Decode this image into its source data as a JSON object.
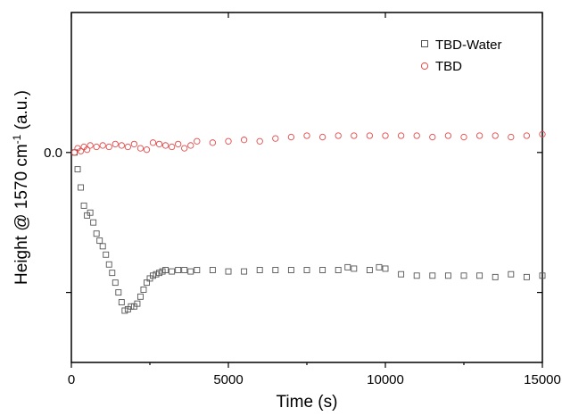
{
  "chart_data": {
    "type": "scatter",
    "title": "",
    "xlabel": "Time (s)",
    "ylabel_parts": {
      "pre": "Height @ 1570 cm",
      "sup": "-1",
      "post": " (a.u.)"
    },
    "xlim": [
      0,
      15000
    ],
    "ylim": [
      -1.5,
      1.0
    ],
    "xticks": [
      0,
      5000,
      10000,
      15000
    ],
    "xtick_labels": [
      "0",
      "5000",
      "10000",
      "15000"
    ],
    "yticks": [
      0.0
    ],
    "ytick_labels": [
      "0.0"
    ],
    "grid": false,
    "legend_position": "top-right",
    "series": [
      {
        "name": "TBD-Water",
        "marker": "square",
        "color": "#555555",
        "x": [
          100,
          200,
          300,
          400,
          500,
          600,
          700,
          800,
          900,
          1000,
          1100,
          1200,
          1300,
          1400,
          1500,
          1600,
          1700,
          1800,
          1900,
          2000,
          2100,
          2200,
          2300,
          2400,
          2500,
          2600,
          2700,
          2800,
          2900,
          3000,
          3200,
          3400,
          3600,
          3800,
          4000,
          4500,
          5000,
          5500,
          6000,
          6500,
          7000,
          7500,
          8000,
          8500,
          8800,
          9000,
          9500,
          9800,
          10000,
          10500,
          11000,
          11500,
          12000,
          12500,
          13000,
          13500,
          14000,
          14500,
          15000
        ],
        "y": [
          0.0,
          -0.12,
          -0.25,
          -0.38,
          -0.45,
          -0.43,
          -0.5,
          -0.58,
          -0.63,
          -0.67,
          -0.73,
          -0.8,
          -0.86,
          -0.93,
          -1.0,
          -1.07,
          -1.13,
          -1.12,
          -1.1,
          -1.1,
          -1.08,
          -1.03,
          -0.98,
          -0.93,
          -0.9,
          -0.88,
          -0.87,
          -0.86,
          -0.85,
          -0.84,
          -0.85,
          -0.84,
          -0.84,
          -0.85,
          -0.84,
          -0.84,
          -0.85,
          -0.85,
          -0.84,
          -0.84,
          -0.84,
          -0.84,
          -0.84,
          -0.84,
          -0.82,
          -0.83,
          -0.84,
          -0.82,
          -0.83,
          -0.87,
          -0.88,
          -0.88,
          -0.88,
          -0.88,
          -0.88,
          -0.89,
          -0.87,
          -0.89,
          -0.88
        ]
      },
      {
        "name": "TBD",
        "marker": "circle",
        "color": "#e34a4a",
        "x": [
          100,
          200,
          300,
          400,
          500,
          600,
          800,
          1000,
          1200,
          1400,
          1600,
          1800,
          2000,
          2200,
          2400,
          2600,
          2800,
          3000,
          3200,
          3400,
          3600,
          3800,
          4000,
          4500,
          5000,
          5500,
          6000,
          6500,
          7000,
          7500,
          8000,
          8500,
          9000,
          9500,
          10000,
          10500,
          11000,
          11500,
          12000,
          12500,
          13000,
          13500,
          14000,
          14500,
          15000
        ],
        "y": [
          0.0,
          0.03,
          0.01,
          0.04,
          0.02,
          0.05,
          0.04,
          0.05,
          0.04,
          0.06,
          0.05,
          0.04,
          0.06,
          0.03,
          0.02,
          0.07,
          0.06,
          0.05,
          0.04,
          0.06,
          0.03,
          0.05,
          0.08,
          0.07,
          0.08,
          0.09,
          0.08,
          0.1,
          0.11,
          0.12,
          0.11,
          0.12,
          0.12,
          0.12,
          0.12,
          0.12,
          0.12,
          0.11,
          0.12,
          0.11,
          0.12,
          0.12,
          0.11,
          0.12,
          0.13
        ]
      }
    ]
  }
}
